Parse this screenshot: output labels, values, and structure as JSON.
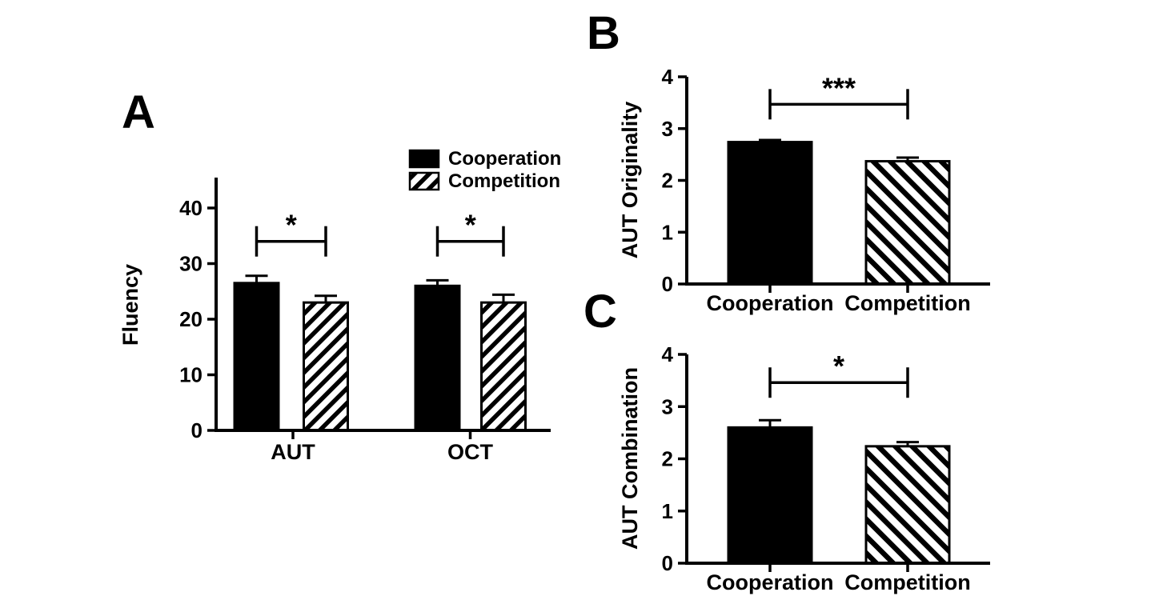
{
  "colors": {
    "ink": "#000000",
    "background": "#ffffff"
  },
  "chart_data": [
    {
      "panel": "A",
      "type": "bar",
      "title": "",
      "ylabel": "Fluency",
      "xlabel": "",
      "categories": [
        "AUT",
        "OCT"
      ],
      "series": [
        {
          "name": "Cooperation",
          "fill": "solid-black",
          "values": [
            26.5,
            26.0
          ],
          "errors": [
            1.3,
            1.0
          ]
        },
        {
          "name": "Competition",
          "fill": "diagonal-hatch-up",
          "values": [
            23.0,
            23.0
          ],
          "errors": [
            1.2,
            1.4
          ]
        }
      ],
      "ylim": [
        0,
        45
      ],
      "yticks": [
        0,
        10,
        20,
        30,
        40
      ],
      "grid": false,
      "legend": {
        "position": "top-right",
        "entries": [
          {
            "label": "Cooperation",
            "fill": "solid-black"
          },
          {
            "label": "Competition",
            "fill": "diagonal-hatch-up"
          }
        ]
      },
      "annotations": [
        {
          "type": "significance-bracket",
          "category": "AUT",
          "between": [
            "Cooperation",
            "Competition"
          ],
          "label": "*",
          "y": 34
        },
        {
          "type": "significance-bracket",
          "category": "OCT",
          "between": [
            "Cooperation",
            "Competition"
          ],
          "label": "*",
          "y": 34
        }
      ]
    },
    {
      "panel": "B",
      "type": "bar",
      "title": "",
      "ylabel": "AUT Originality",
      "xlabel": "",
      "categories": [
        "Cooperation",
        "Competition"
      ],
      "values": [
        2.74,
        2.37
      ],
      "errors": [
        0.04,
        0.07
      ],
      "bar_fills": [
        "solid-black",
        "diagonal-hatch-down"
      ],
      "ylim": [
        0,
        4
      ],
      "yticks": [
        0,
        1,
        2,
        3,
        4
      ],
      "grid": false,
      "annotations": [
        {
          "type": "significance-bracket",
          "between": [
            "Cooperation",
            "Competition"
          ],
          "label": "***",
          "y": 3.47
        }
      ]
    },
    {
      "panel": "C",
      "type": "bar",
      "title": "",
      "ylabel": "AUT Combination",
      "xlabel": "",
      "categories": [
        "Cooperation",
        "Competition"
      ],
      "values": [
        2.6,
        2.24
      ],
      "errors": [
        0.14,
        0.08
      ],
      "bar_fills": [
        "solid-black",
        "diagonal-hatch-down"
      ],
      "ylim": [
        0,
        4
      ],
      "yticks": [
        0,
        1,
        2,
        3,
        4
      ],
      "grid": false,
      "annotations": [
        {
          "type": "significance-bracket",
          "between": [
            "Cooperation",
            "Competition"
          ],
          "label": "*",
          "y": 3.46
        }
      ]
    }
  ]
}
